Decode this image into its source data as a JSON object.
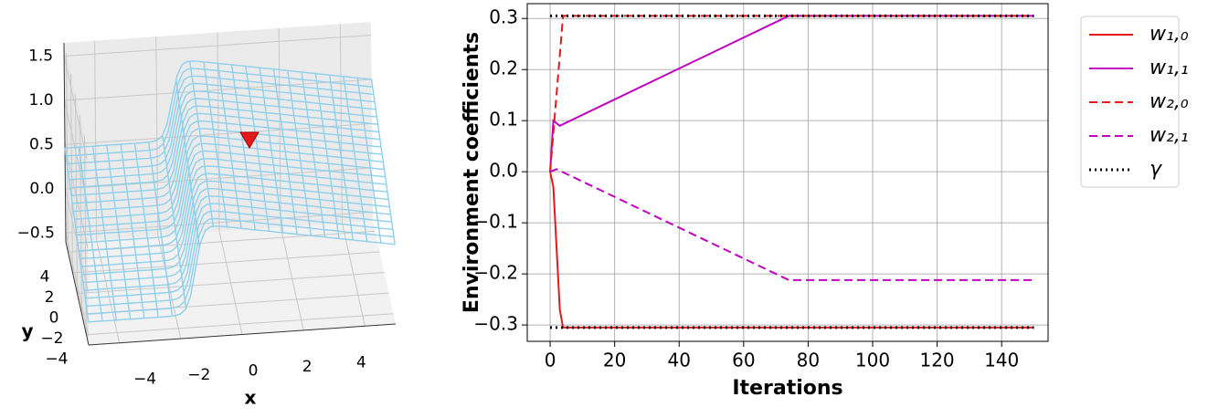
{
  "chart_data": [
    {
      "type": "surface3d",
      "xlabel": "x",
      "ylabel": "y",
      "xlim": [
        -5,
        5
      ],
      "ylim": [
        -5,
        5
      ],
      "zlim": [
        -0.6,
        1.65
      ],
      "xticks": [
        {
          "value": -4,
          "label": "−4"
        },
        {
          "value": -2,
          "label": "−2"
        },
        0,
        2,
        4
      ],
      "yticks": [
        4,
        2,
        0,
        {
          "value": -2,
          "label": "−2"
        },
        {
          "value": -4,
          "label": "−4"
        }
      ],
      "zticks": [
        {
          "value": -0.5,
          "label": "−0.5"
        },
        {
          "value": 0,
          "label": "0.0"
        },
        0.5,
        {
          "value": 1,
          "label": "1.0"
        },
        1.5
      ],
      "color": "#8fd0ec",
      "marker_color": "#e31a1c",
      "grid": true
    },
    {
      "type": "line",
      "xlabel": "Iterations",
      "ylabel": "Environment coefficients",
      "xlim": [
        -7.1,
        154.4
      ],
      "ylim": [
        -0.332,
        0.329
      ],
      "xticks": [
        0,
        20,
        40,
        60,
        80,
        100,
        120,
        140
      ],
      "yticks": [
        {
          "value": -0.3,
          "label": "−0.3"
        },
        {
          "value": -0.2,
          "label": "−0.2"
        },
        {
          "value": -0.1,
          "label": "−0.1"
        },
        {
          "value": 0,
          "label": "0.0"
        },
        0.1,
        0.2,
        0.3
      ],
      "grid": true,
      "legend": "outside-right",
      "series": [
        {
          "name": "w₁,₀",
          "color": "#e31a1c",
          "style": "solid",
          "x": [
            0,
            1,
            2,
            3,
            4,
            150
          ],
          "values": [
            0,
            -0.03,
            -0.15,
            -0.27,
            -0.305,
            -0.305
          ]
        },
        {
          "name": "w₁,₁",
          "color": "#bf00bf",
          "style": "solid",
          "x": [
            0,
            1,
            3,
            74,
            150
          ],
          "values": [
            0,
            0.1,
            0.09,
            0.305,
            0.305
          ]
        },
        {
          "name": "w₂,₀",
          "color": "#e31a1c",
          "style": "dashed",
          "x": [
            0,
            4,
            150
          ],
          "values": [
            0,
            0.305,
            0.305
          ]
        },
        {
          "name": "w₂,₁",
          "color": "#bf00bf",
          "style": "dashed",
          "x": [
            0,
            2,
            74,
            150
          ],
          "values": [
            0,
            0.005,
            -0.212,
            -0.212
          ]
        },
        {
          "name": "γ",
          "color": "#000000",
          "style": "dotted",
          "x": [
            0,
            150,
            null,
            0,
            150
          ],
          "values": [
            0.305,
            0.305,
            null,
            -0.305,
            -0.305
          ]
        }
      ]
    }
  ]
}
